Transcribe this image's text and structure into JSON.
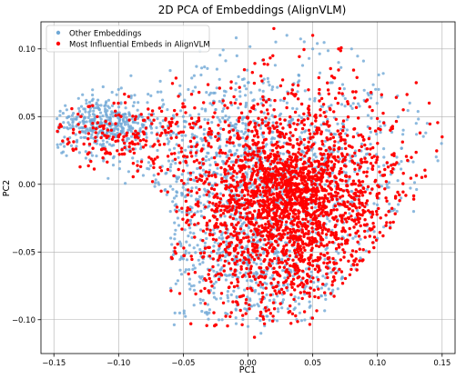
{
  "chart_data": {
    "type": "scatter",
    "title": "2D PCA of Embeddings (AlignVLM)",
    "xlabel": "PC1",
    "ylabel": "PC2",
    "xlim": [
      -0.16,
      0.16
    ],
    "ylim": [
      -0.125,
      0.12
    ],
    "xticks": [
      -0.15,
      -0.1,
      -0.05,
      0.0,
      0.05,
      0.1,
      0.15
    ],
    "xtick_labels": [
      "−0.15",
      "−0.10",
      "−0.05",
      "0.00",
      "0.05",
      "0.10",
      "0.15"
    ],
    "yticks": [
      -0.1,
      -0.05,
      0.0,
      0.05,
      0.1
    ],
    "ytick_labels": [
      "−0.10",
      "−0.05",
      "0.00",
      "0.05",
      "0.10"
    ],
    "grid": true,
    "legend_position": "top-left",
    "series": [
      {
        "name": "Other Embeddings",
        "color": "#6fa8d6",
        "marker": "circle",
        "sample_points": [
          [
            -0.146,
            0.043
          ],
          [
            -0.14,
            0.055
          ],
          [
            -0.142,
            0.028
          ],
          [
            -0.125,
            0.062
          ],
          [
            -0.112,
            0.072
          ],
          [
            -0.105,
            0.068
          ],
          [
            -0.1,
            0.07
          ],
          [
            -0.095,
            0.052
          ],
          [
            -0.13,
            0.05
          ],
          [
            -0.12,
            0.04
          ],
          [
            -0.085,
            0.035
          ],
          [
            -0.07,
            0.025
          ],
          [
            -0.06,
            0.01
          ],
          [
            -0.05,
            0.0
          ],
          [
            -0.04,
            -0.03
          ],
          [
            -0.045,
            -0.07
          ],
          [
            -0.03,
            -0.095
          ],
          [
            -0.02,
            -0.1
          ],
          [
            0.0,
            -0.105
          ],
          [
            0.01,
            -0.11
          ],
          [
            0.02,
            -0.1
          ],
          [
            0.04,
            -0.095
          ],
          [
            0.06,
            -0.085
          ],
          [
            0.08,
            -0.06
          ],
          [
            0.1,
            -0.04
          ],
          [
            0.11,
            -0.02
          ],
          [
            0.115,
            0.02
          ],
          [
            0.12,
            0.04
          ],
          [
            0.125,
            0.06
          ],
          [
            0.13,
            0.045
          ],
          [
            0.128,
            -0.02
          ],
          [
            0.0,
            0.075
          ],
          [
            0.03,
            0.11
          ],
          [
            0.05,
            0.1
          ],
          [
            0.07,
            0.09
          ],
          [
            0.08,
            0.1
          ],
          [
            -0.02,
            0.06
          ],
          [
            -0.05,
            0.05
          ],
          [
            -0.06,
            -0.02
          ],
          [
            0.09,
            0.02
          ]
        ]
      },
      {
        "name": "Most Influential Embeds in AlignVLM",
        "color": "#ff0000",
        "marker": "circle",
        "sample_points": [
          [
            -0.146,
            0.042
          ],
          [
            -0.135,
            0.038
          ],
          [
            -0.12,
            0.045
          ],
          [
            -0.1,
            0.035
          ],
          [
            -0.085,
            0.03
          ],
          [
            -0.07,
            0.02
          ],
          [
            -0.05,
            0.01
          ],
          [
            -0.03,
            0.0
          ],
          [
            0.0,
            -0.005
          ],
          [
            0.02,
            -0.01
          ],
          [
            0.04,
            -0.015
          ],
          [
            0.06,
            -0.01
          ],
          [
            0.08,
            0.0
          ],
          [
            0.1,
            0.02
          ],
          [
            0.11,
            0.04
          ],
          [
            0.12,
            0.055
          ],
          [
            0.13,
            0.075
          ],
          [
            0.15,
            0.035
          ],
          [
            0.14,
            0.06
          ],
          [
            0.02,
            0.115
          ],
          [
            0.05,
            0.11
          ],
          [
            0.07,
            0.1
          ],
          [
            0.01,
            0.08
          ],
          [
            -0.01,
            0.06
          ],
          [
            0.0,
            -0.05
          ],
          [
            0.02,
            -0.07
          ],
          [
            0.01,
            -0.095
          ],
          [
            0.005,
            -0.113
          ],
          [
            -0.03,
            -0.08
          ],
          [
            0.05,
            -0.06
          ],
          [
            0.07,
            -0.04
          ],
          [
            0.09,
            -0.03
          ],
          [
            0.1,
            -0.01
          ],
          [
            -0.02,
            -0.03
          ],
          [
            0.03,
            0.03
          ],
          [
            0.06,
            0.05
          ]
        ]
      }
    ]
  },
  "legend": {
    "items": [
      {
        "label": "Other Embeddings",
        "color": "#6fa8d6"
      },
      {
        "label": "Most Influential Embeds in AlignVLM",
        "color": "#ff0000"
      }
    ]
  }
}
